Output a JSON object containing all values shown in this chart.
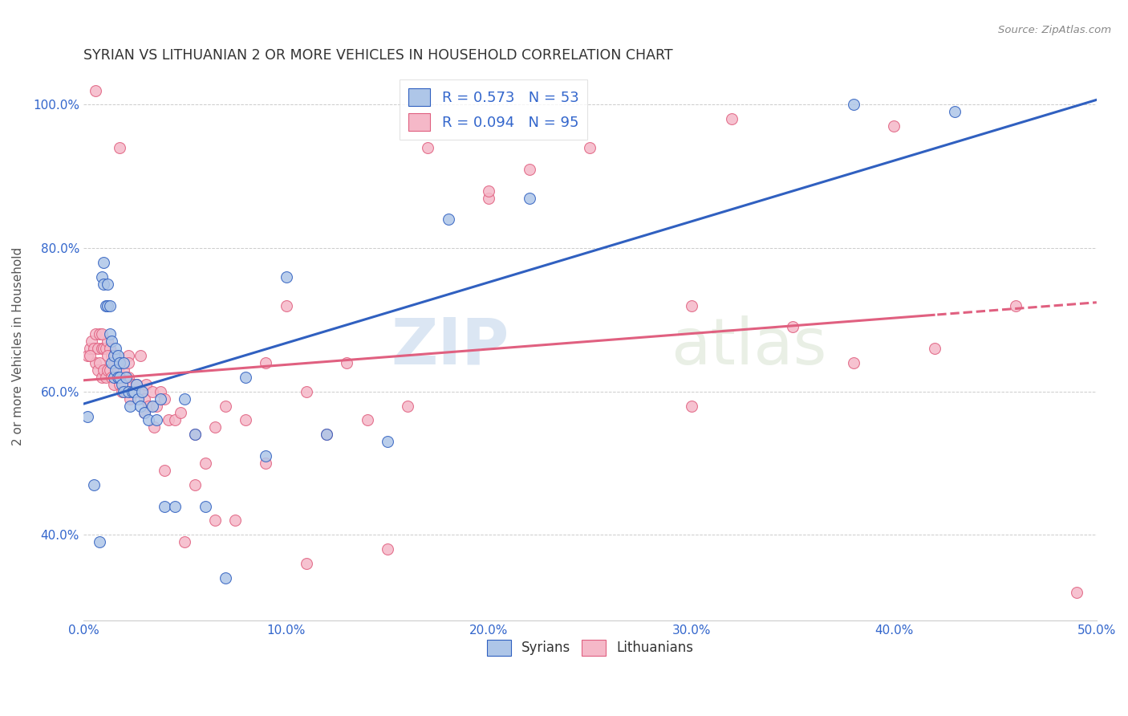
{
  "title": "SYRIAN VS LITHUANIAN 2 OR MORE VEHICLES IN HOUSEHOLD CORRELATION CHART",
  "source": "Source: ZipAtlas.com",
  "ylabel": "2 or more Vehicles in Household",
  "x_min": 0.0,
  "x_max": 0.5,
  "y_min": 0.28,
  "y_max": 1.045,
  "x_ticks": [
    0.0,
    0.1,
    0.2,
    0.3,
    0.4,
    0.5
  ],
  "x_tick_labels": [
    "0.0%",
    "10.0%",
    "20.0%",
    "30.0%",
    "40.0%",
    "50.0%"
  ],
  "y_ticks": [
    0.4,
    0.6,
    0.8,
    1.0
  ],
  "y_tick_labels": [
    "40.0%",
    "60.0%",
    "80.0%",
    "100.0%"
  ],
  "syrian_color": "#aec6e8",
  "lithuanian_color": "#f5b8c8",
  "syrian_R": 0.573,
  "syrian_N": 53,
  "lithuanian_R": 0.094,
  "lithuanian_N": 95,
  "syrian_line_color": "#3060c0",
  "lithuanian_line_color": "#e06080",
  "watermark_zip": "ZIP",
  "watermark_atlas": "atlas",
  "syrian_x": [
    0.002,
    0.005,
    0.008,
    0.009,
    0.01,
    0.01,
    0.011,
    0.012,
    0.012,
    0.013,
    0.013,
    0.014,
    0.014,
    0.015,
    0.015,
    0.016,
    0.016,
    0.017,
    0.017,
    0.018,
    0.018,
    0.019,
    0.02,
    0.02,
    0.021,
    0.022,
    0.023,
    0.024,
    0.025,
    0.026,
    0.027,
    0.028,
    0.029,
    0.03,
    0.032,
    0.034,
    0.036,
    0.038,
    0.04,
    0.045,
    0.05,
    0.055,
    0.06,
    0.07,
    0.08,
    0.09,
    0.1,
    0.12,
    0.15,
    0.18,
    0.22,
    0.38,
    0.43
  ],
  "syrian_y": [
    0.565,
    0.47,
    0.39,
    0.76,
    0.75,
    0.78,
    0.72,
    0.72,
    0.75,
    0.68,
    0.72,
    0.64,
    0.67,
    0.62,
    0.65,
    0.63,
    0.66,
    0.62,
    0.65,
    0.62,
    0.64,
    0.61,
    0.6,
    0.64,
    0.62,
    0.6,
    0.58,
    0.6,
    0.6,
    0.61,
    0.59,
    0.58,
    0.6,
    0.57,
    0.56,
    0.58,
    0.56,
    0.59,
    0.44,
    0.44,
    0.59,
    0.54,
    0.44,
    0.34,
    0.62,
    0.51,
    0.76,
    0.54,
    0.53,
    0.84,
    0.87,
    1.0,
    0.99
  ],
  "lithuanian_x": [
    0.002,
    0.003,
    0.004,
    0.005,
    0.006,
    0.006,
    0.007,
    0.007,
    0.008,
    0.008,
    0.009,
    0.009,
    0.01,
    0.01,
    0.011,
    0.011,
    0.012,
    0.012,
    0.013,
    0.013,
    0.014,
    0.014,
    0.015,
    0.015,
    0.016,
    0.017,
    0.018,
    0.018,
    0.019,
    0.02,
    0.02,
    0.021,
    0.022,
    0.022,
    0.023,
    0.024,
    0.025,
    0.026,
    0.027,
    0.028,
    0.029,
    0.03,
    0.031,
    0.032,
    0.034,
    0.036,
    0.038,
    0.04,
    0.042,
    0.045,
    0.05,
    0.055,
    0.06,
    0.065,
    0.07,
    0.08,
    0.09,
    0.1,
    0.11,
    0.12,
    0.13,
    0.14,
    0.16,
    0.17,
    0.2,
    0.22,
    0.25,
    0.3,
    0.32,
    0.35,
    0.38,
    0.4,
    0.42,
    0.46,
    0.49,
    0.003,
    0.006,
    0.009,
    0.012,
    0.015,
    0.018,
    0.022,
    0.026,
    0.03,
    0.035,
    0.04,
    0.048,
    0.055,
    0.065,
    0.075,
    0.09,
    0.11,
    0.15,
    0.2,
    0.3
  ],
  "lithuanian_y": [
    0.65,
    0.66,
    0.67,
    0.66,
    0.64,
    0.68,
    0.63,
    0.66,
    0.64,
    0.68,
    0.62,
    0.66,
    0.63,
    0.66,
    0.62,
    0.66,
    0.63,
    0.67,
    0.63,
    0.66,
    0.62,
    0.65,
    0.61,
    0.64,
    0.65,
    0.63,
    0.61,
    0.64,
    0.6,
    0.62,
    0.63,
    0.6,
    0.62,
    0.65,
    0.59,
    0.61,
    0.6,
    0.61,
    0.6,
    0.65,
    0.6,
    0.59,
    0.61,
    0.58,
    0.6,
    0.58,
    0.6,
    0.59,
    0.56,
    0.56,
    0.39,
    0.54,
    0.5,
    0.55,
    0.58,
    0.56,
    0.64,
    0.72,
    0.6,
    0.54,
    0.64,
    0.56,
    0.58,
    0.94,
    0.87,
    0.91,
    0.94,
    0.72,
    0.98,
    0.69,
    0.64,
    0.97,
    0.66,
    0.72,
    0.32,
    0.65,
    1.02,
    0.68,
    0.65,
    0.64,
    0.94,
    0.64,
    0.61,
    0.57,
    0.55,
    0.49,
    0.57,
    0.47,
    0.42,
    0.42,
    0.5,
    0.36,
    0.38,
    0.88,
    0.58
  ]
}
